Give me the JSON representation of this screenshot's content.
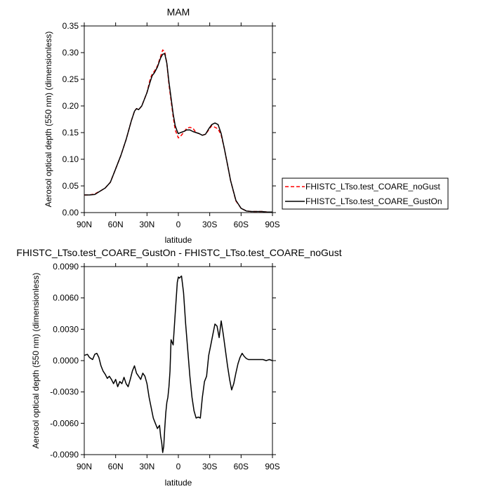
{
  "chart_data": [
    {
      "type": "line",
      "title": "MAM",
      "xlabel": "latitude",
      "ylabel": "Aerosol optical depth (550 nm) (dimensionless)",
      "xlim": [
        90,
        -90
      ],
      "ylim": [
        0,
        0.35
      ],
      "x_ticks": [
        {
          "value": 90,
          "label": "90N"
        },
        {
          "value": 60,
          "label": "60N"
        },
        {
          "value": 30,
          "label": "30N"
        },
        {
          "value": 0,
          "label": "0"
        },
        {
          "value": -30,
          "label": "30S"
        },
        {
          "value": -60,
          "label": "60S"
        },
        {
          "value": -90,
          "label": "90S"
        }
      ],
      "y_ticks": [
        {
          "value": 0,
          "label": "0.00"
        },
        {
          "value": 0.05,
          "label": "0.05"
        },
        {
          "value": 0.1,
          "label": "0.10"
        },
        {
          "value": 0.15,
          "label": "0.15"
        },
        {
          "value": 0.2,
          "label": "0.20"
        },
        {
          "value": 0.25,
          "label": "0.25"
        },
        {
          "value": 0.3,
          "label": "0.30"
        },
        {
          "value": 0.35,
          "label": "0.35"
        }
      ],
      "legend_position": "right",
      "series": [
        {
          "name": "FHISTC_LTso.test_COARE_noGust",
          "color": "#ff0000",
          "dash": "dashed",
          "x": [
            90,
            85,
            80,
            75,
            70,
            65,
            60,
            55,
            50,
            45,
            42,
            40,
            38,
            35,
            30,
            27,
            25,
            23,
            20,
            17,
            15,
            13,
            11,
            9,
            7,
            5,
            3,
            1,
            0,
            -2,
            -5,
            -8,
            -11,
            -14,
            -17,
            -20,
            -23,
            -26,
            -29,
            -32,
            -35,
            -38,
            -41,
            -44,
            -47,
            -50,
            -55,
            -60,
            -65,
            -70,
            -75,
            -80,
            -85,
            -90
          ],
          "y": [
            0.033,
            0.033,
            0.035,
            0.04,
            0.046,
            0.057,
            0.082,
            0.107,
            0.137,
            0.172,
            0.19,
            0.195,
            0.193,
            0.2,
            0.225,
            0.25,
            0.26,
            0.265,
            0.275,
            0.293,
            0.305,
            0.302,
            0.28,
            0.24,
            0.21,
            0.18,
            0.155,
            0.145,
            0.14,
            0.143,
            0.15,
            0.158,
            0.16,
            0.158,
            0.15,
            0.148,
            0.145,
            0.147,
            0.155,
            0.163,
            0.16,
            0.157,
            0.145,
            0.12,
            0.09,
            0.06,
            0.022,
            0.008,
            0.003,
            0.002,
            0.002,
            0.002,
            0.001,
            0.001
          ]
        },
        {
          "name": "FHISTC_LTso.test_COARE_GustOn",
          "color": "#000000",
          "dash": "solid",
          "x": [
            90,
            85,
            80,
            75,
            70,
            65,
            60,
            55,
            50,
            45,
            42,
            40,
            38,
            35,
            30,
            27,
            25,
            23,
            20,
            17,
            15,
            13,
            11,
            9,
            7,
            5,
            3,
            1,
            0,
            -2,
            -5,
            -8,
            -11,
            -14,
            -17,
            -20,
            -23,
            -26,
            -29,
            -32,
            -35,
            -38,
            -41,
            -44,
            -47,
            -50,
            -55,
            -60,
            -65,
            -70,
            -75,
            -80,
            -85,
            -90
          ],
          "y": [
            0.033,
            0.033,
            0.034,
            0.04,
            0.046,
            0.057,
            0.082,
            0.107,
            0.137,
            0.172,
            0.19,
            0.195,
            0.193,
            0.2,
            0.225,
            0.245,
            0.257,
            0.262,
            0.273,
            0.29,
            0.297,
            0.298,
            0.28,
            0.245,
            0.215,
            0.185,
            0.163,
            0.152,
            0.148,
            0.15,
            0.152,
            0.155,
            0.155,
            0.152,
            0.15,
            0.148,
            0.145,
            0.147,
            0.157,
            0.165,
            0.168,
            0.165,
            0.148,
            0.12,
            0.09,
            0.06,
            0.023,
            0.008,
            0.003,
            0.002,
            0.002,
            0.002,
            0.001,
            0.001
          ]
        }
      ]
    },
    {
      "type": "line",
      "title": "FHISTC_LTso.test_COARE_GustOn - FHISTC_LTso.test_COARE_noGust",
      "xlabel": "latitude",
      "ylabel": "Aerosol optical depth (550 nm) (dimensionless)",
      "xlim": [
        90,
        -90
      ],
      "ylim": [
        -0.009,
        0.009
      ],
      "x_ticks": [
        {
          "value": 90,
          "label": "90N"
        },
        {
          "value": 60,
          "label": "60N"
        },
        {
          "value": 30,
          "label": "30N"
        },
        {
          "value": 0,
          "label": "0"
        },
        {
          "value": -30,
          "label": "30S"
        },
        {
          "value": -60,
          "label": "60S"
        },
        {
          "value": -90,
          "label": "90S"
        }
      ],
      "y_ticks": [
        {
          "value": -0.009,
          "label": "-0.0090"
        },
        {
          "value": -0.006,
          "label": "-0.0060"
        },
        {
          "value": -0.003,
          "label": "-0.0030"
        },
        {
          "value": 0,
          "label": "0.0000"
        },
        {
          "value": 0.003,
          "label": "0.0030"
        },
        {
          "value": 0.006,
          "label": "0.0060"
        },
        {
          "value": 0.009,
          "label": "0.0090"
        }
      ],
      "series": [
        {
          "color": "#000000",
          "dash": "solid",
          "x": [
            90,
            87,
            85,
            82,
            80,
            78,
            76,
            74,
            72,
            70,
            68,
            66,
            64,
            62,
            60,
            58,
            56,
            54,
            52,
            50,
            48,
            46,
            44,
            42,
            40,
            38,
            36,
            34,
            32,
            30,
            28,
            26,
            24,
            22,
            20,
            18,
            17,
            16,
            15,
            14,
            13,
            12,
            11,
            10,
            9,
            8,
            7,
            5,
            3,
            1,
            0,
            -1,
            -3,
            -5,
            -7,
            -9,
            -11,
            -13,
            -15,
            -17,
            -19,
            -21,
            -23,
            -25,
            -27,
            -29,
            -31,
            -33,
            -35,
            -37,
            -39,
            -41,
            -43,
            -45,
            -47,
            -49,
            -51,
            -53,
            -55,
            -57,
            -59,
            -61,
            -63,
            -65,
            -67,
            -69,
            -72,
            -75,
            -78,
            -81,
            -84,
            -87,
            -90
          ],
          "y": [
            0.0005,
            0.0006,
            0.0003,
            0.0001,
            0.0006,
            0.0007,
            0.0003,
            -0.0005,
            -0.001,
            -0.0013,
            -0.0017,
            -0.0015,
            -0.0018,
            -0.0022,
            -0.0018,
            -0.0025,
            -0.002,
            -0.0022,
            -0.0016,
            -0.0022,
            -0.0025,
            -0.0018,
            -0.001,
            -0.0005,
            -0.0012,
            -0.0015,
            -0.0018,
            -0.0012,
            -0.0015,
            -0.0022,
            -0.0035,
            -0.0045,
            -0.0055,
            -0.006,
            -0.0065,
            -0.0062,
            -0.0072,
            -0.0078,
            -0.0088,
            -0.0082,
            -0.0065,
            -0.005,
            -0.004,
            -0.0035,
            -0.0025,
            -0.001,
            0.002,
            0.0015,
            0.0045,
            0.0075,
            0.008,
            0.0079,
            0.0081,
            0.0065,
            0.0035,
            0.001,
            -0.0015,
            -0.0035,
            -0.0048,
            -0.0055,
            -0.0054,
            -0.0055,
            -0.0035,
            -0.002,
            -0.0015,
            0.0005,
            0.0015,
            0.0025,
            0.0035,
            0.0033,
            0.0022,
            0.0038,
            0.0025,
            0.001,
            -0.0005,
            -0.0018,
            -0.0028,
            -0.0022,
            -0.0012,
            -0.0003,
            0.0003,
            0.0007,
            0.0004,
            0.0002,
            0.0001,
            0.0001,
            0.0001,
            0.0001,
            0.0001,
            0.0001,
            0.0,
            0.0001,
            0.0
          ]
        }
      ]
    }
  ]
}
